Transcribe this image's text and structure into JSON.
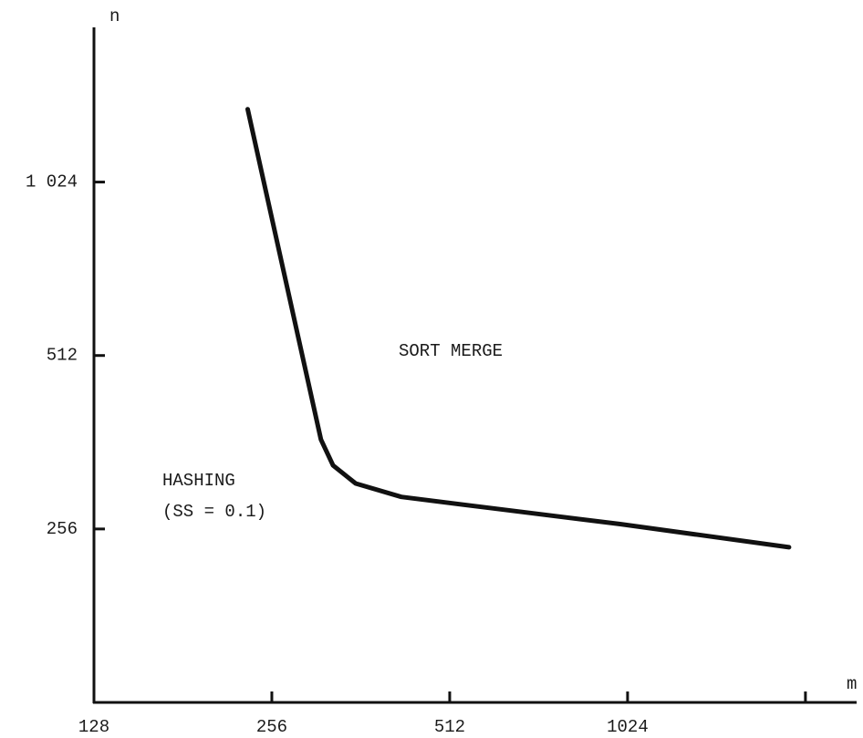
{
  "chart_data": {
    "type": "line",
    "x_axis_label": "m",
    "y_axis_label": "n",
    "annotations": [
      "SORT MERGE",
      "HASHING",
      "(SS = 0.1)"
    ],
    "x": [
      233,
      310,
      325,
      355,
      424,
      605,
      995,
      1921
    ],
    "values": [
      1370,
      366,
      330,
      307,
      291,
      278,
      261,
      238
    ],
    "color": "#111111",
    "xscale": "log",
    "yscale": "log",
    "xlim": [
      128,
      2500
    ],
    "ylim": [
      128,
      1900
    ],
    "xticks": [
      128,
      256,
      512,
      1024,
      {
        "value": 2048,
        "label": null
      }
    ],
    "yticks": [
      256,
      512,
      {
        "value": 1024,
        "label": "1 024"
      }
    ],
    "grid": false
  }
}
